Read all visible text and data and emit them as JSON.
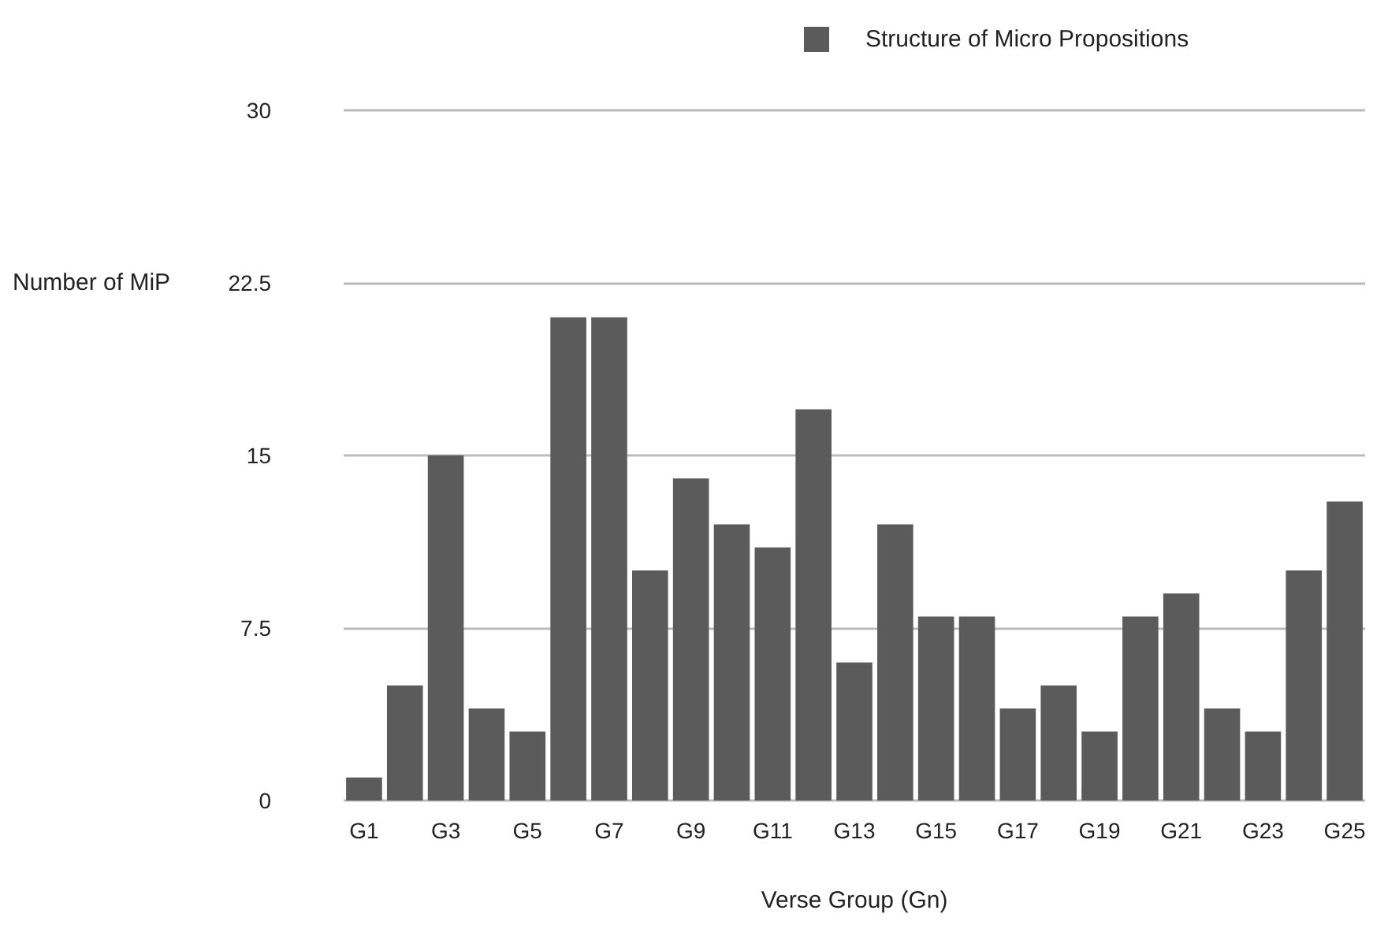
{
  "chart_data": {
    "type": "bar",
    "xlabel": "Verse Group (Gn)",
    "ylabel": "Number of MiP",
    "categories": [
      "G1",
      null,
      "G3",
      null,
      "G5",
      null,
      "G7",
      null,
      "G9",
      null,
      "G11",
      null,
      "G13",
      null,
      "G15",
      null,
      "G17",
      null,
      "G19",
      null,
      "G21",
      null,
      "G23",
      null,
      "G25"
    ],
    "series": [
      {
        "name": "Structure of Micro Propositions",
        "color": "#5b5b5b",
        "values": [
          1,
          5,
          15,
          4,
          3,
          21,
          21,
          10,
          14,
          12,
          11,
          17,
          6,
          12,
          8,
          8,
          4,
          5,
          3,
          8,
          9,
          4,
          3,
          10,
          13
        ]
      }
    ],
    "ylim": [
      0,
      30
    ],
    "yticks": [
      0,
      7.5,
      15,
      22.5,
      30
    ],
    "grid": "y",
    "legend": "top right"
  }
}
